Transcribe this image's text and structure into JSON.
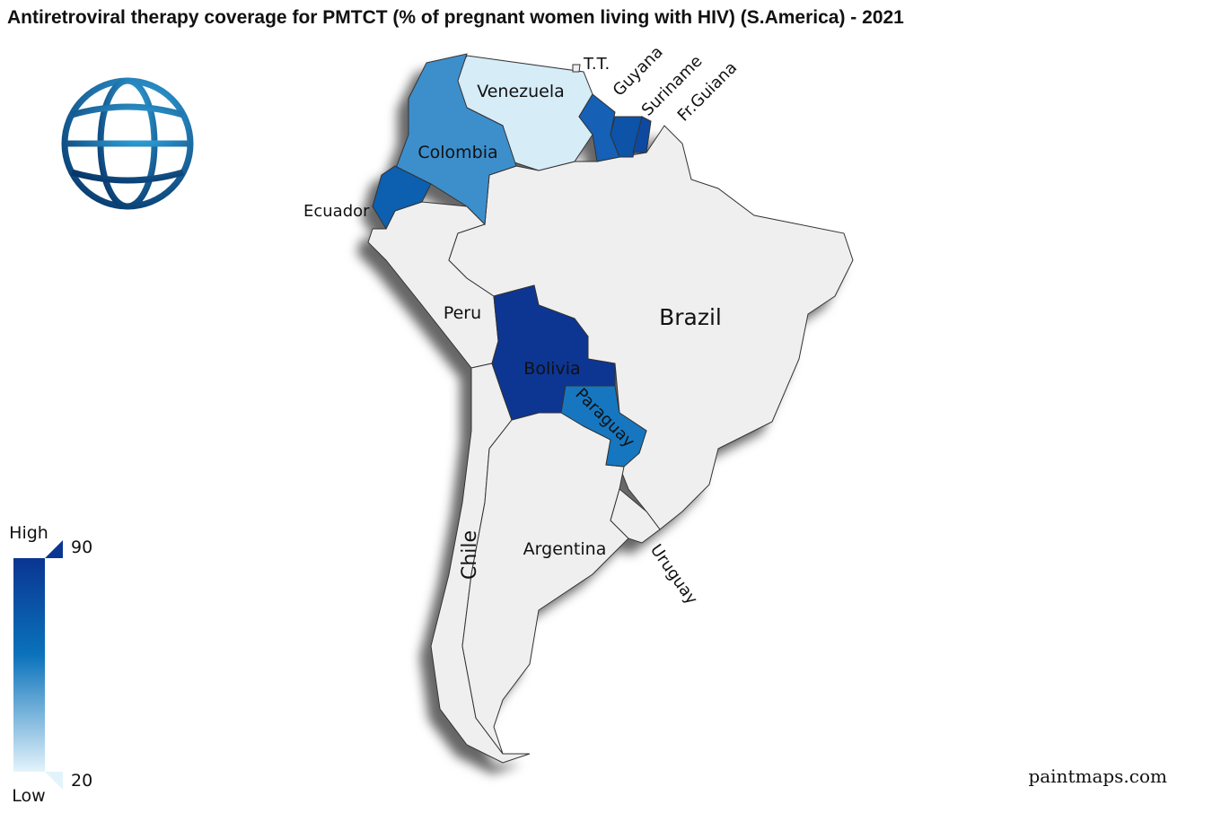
{
  "title": "Antiretroviral therapy coverage for PMTCT (% of pregnant women living with HIV) (S.America) - 2021",
  "countries": [
    {
      "label": "Venezuela",
      "color": "#d6ecf7"
    },
    {
      "label": "Colombia",
      "color": "#3d8fcc"
    },
    {
      "label": "Ecuador",
      "color": "#0f5fb0"
    },
    {
      "label": "Guyana",
      "color": "#1360b5"
    },
    {
      "label": "Suriname",
      "color": "#0a52a8"
    },
    {
      "label": "Fr.Guiana",
      "color": "#0d4aa0"
    },
    {
      "label": "Bolivia",
      "color": "#0a3592"
    },
    {
      "label": "Paraguay",
      "color": "#1577c0"
    },
    {
      "label": "Peru",
      "color": "#efefef"
    },
    {
      "label": "Brazil",
      "color": "#efefef"
    },
    {
      "label": "Chile",
      "color": "#efefef"
    },
    {
      "label": "Argentina",
      "color": "#efefef"
    },
    {
      "label": "Uruguay",
      "color": "#efefef"
    },
    {
      "label": "T.T.",
      "color": "#efefef"
    }
  ],
  "legend": {
    "high": "High",
    "low": "Low",
    "max": 90,
    "min": 20
  },
  "credit": "paintmaps.com"
}
